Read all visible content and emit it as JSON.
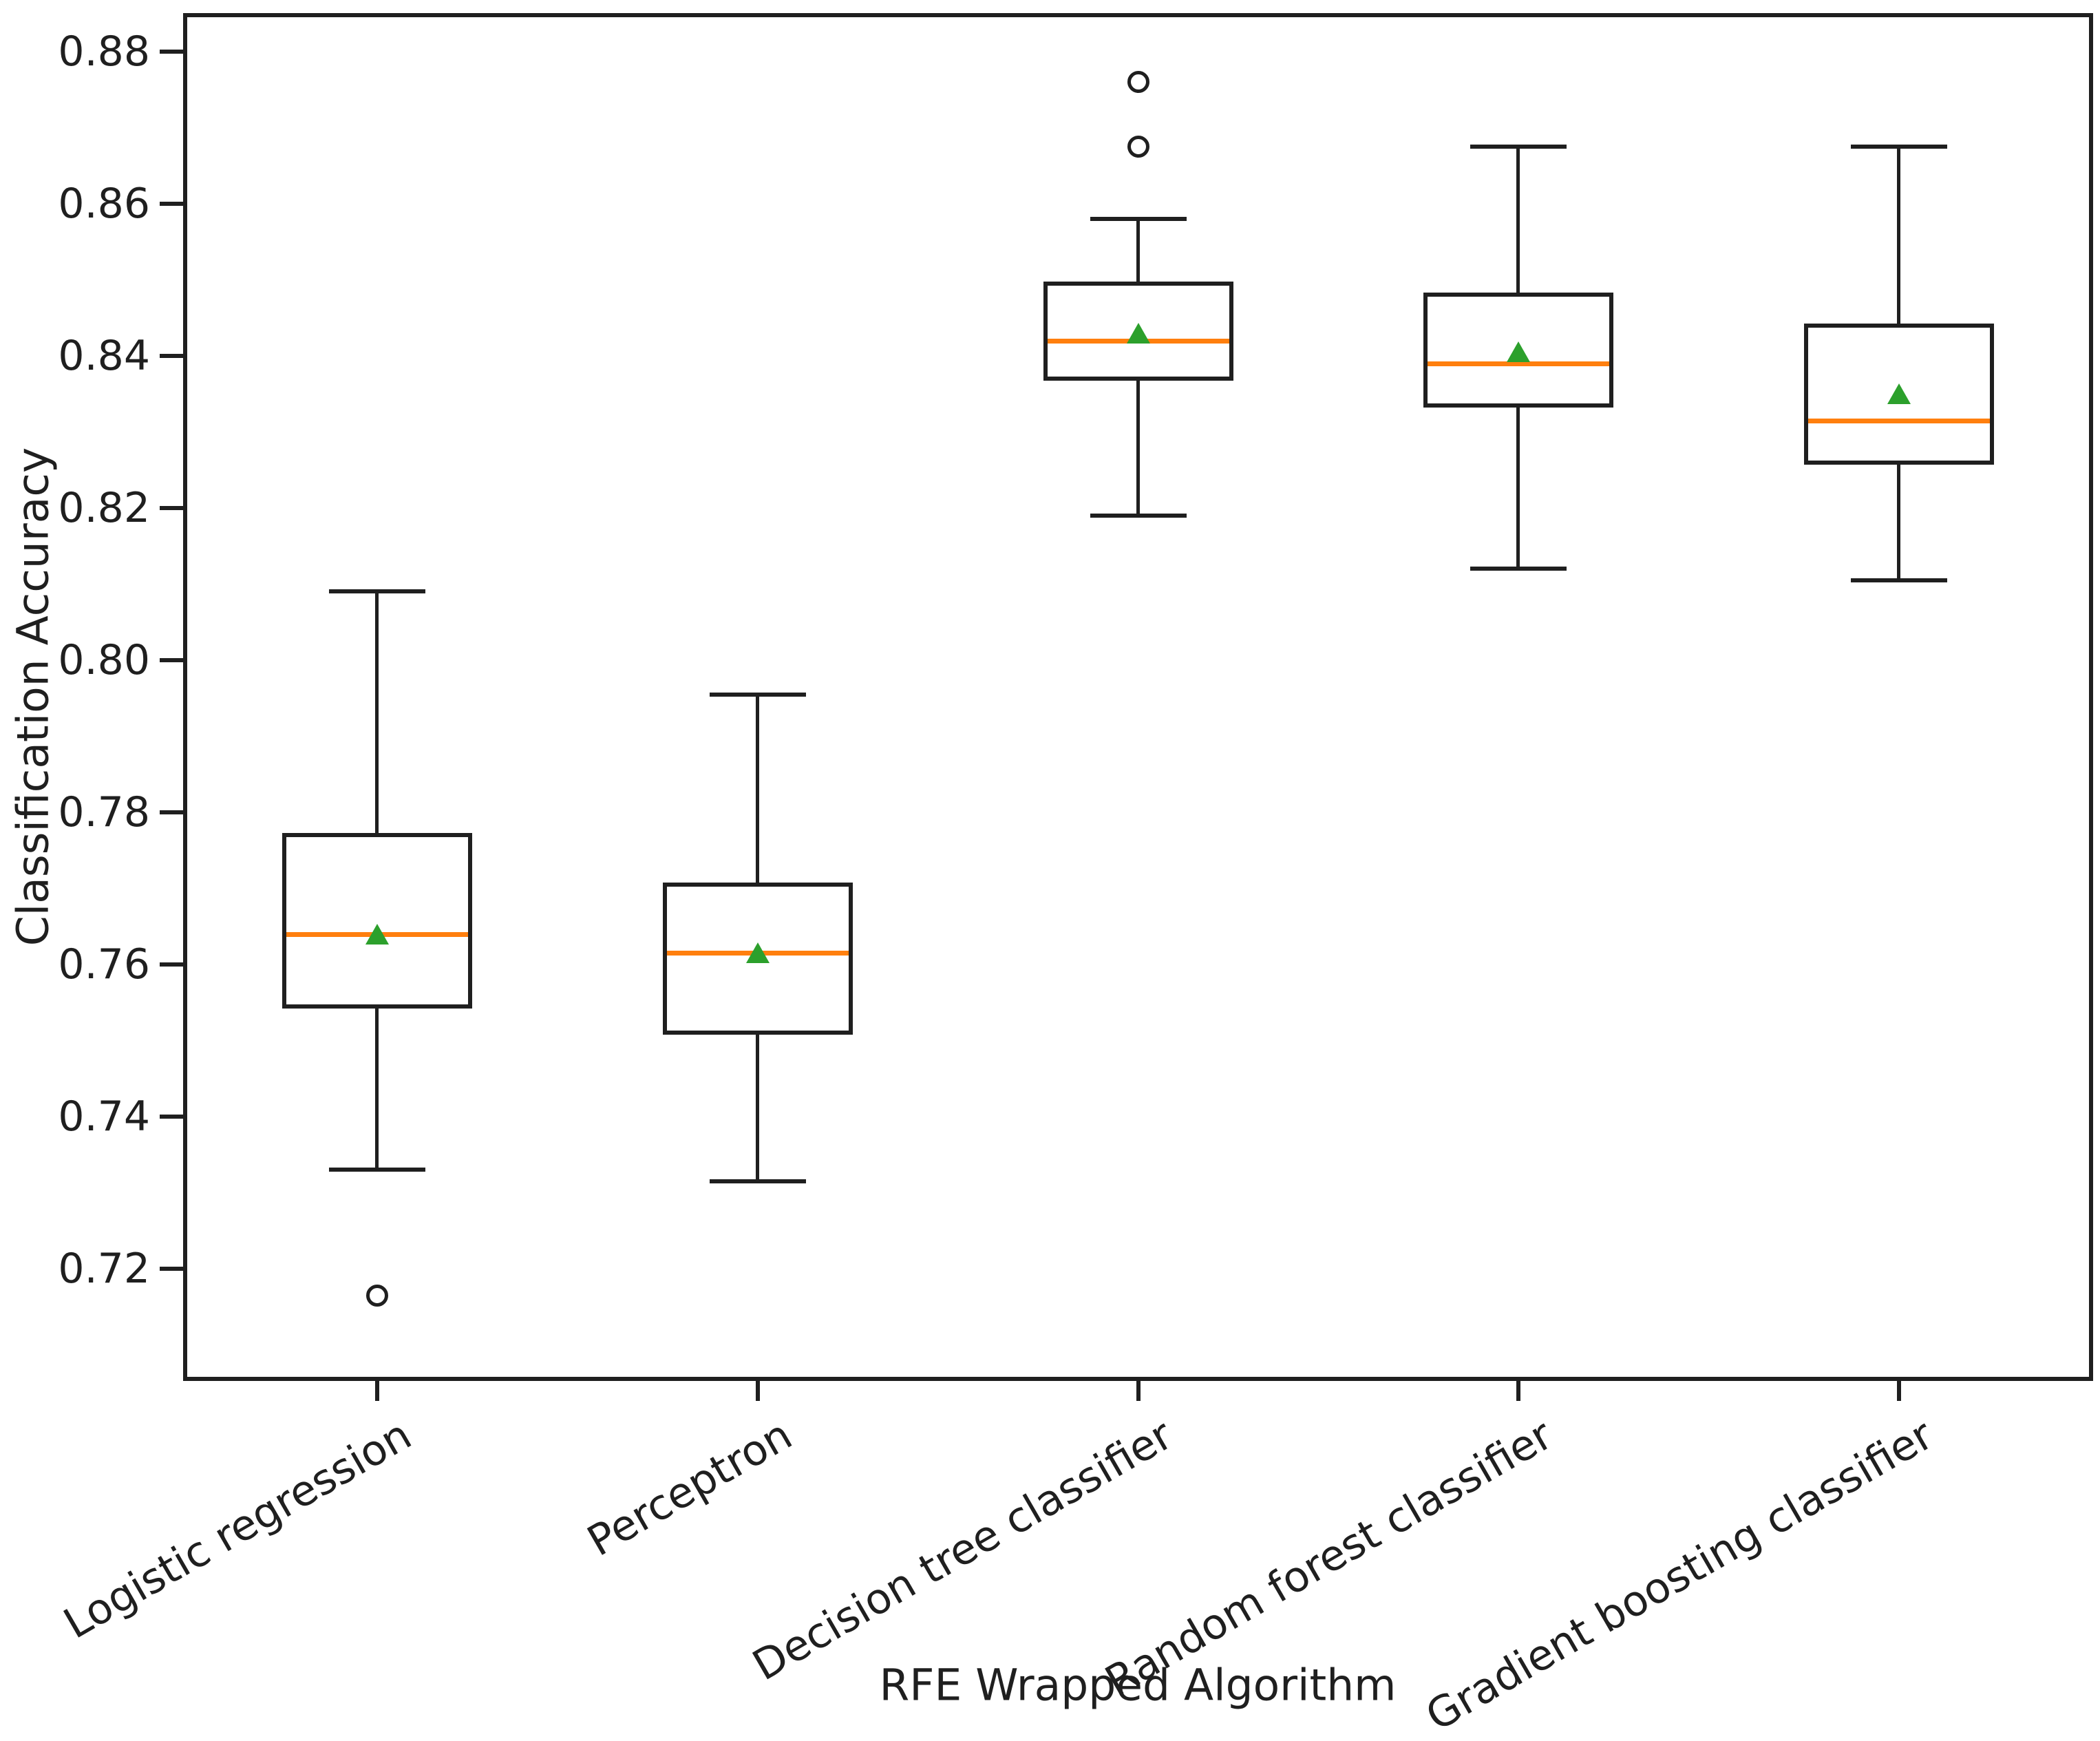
{
  "figure": {
    "background": "#ffffff"
  },
  "chart_data": {
    "type": "box",
    "title": "",
    "xlabel": "RFE Wrapped Algorithm",
    "ylabel": "Classification Accuracy",
    "categories": [
      "Logistic regression",
      "Perceptron",
      "Decision tree classifier",
      "Random forest classifier",
      "Gradient boosting classifier"
    ],
    "ytick_labels": [
      "0.72",
      "0.74",
      "0.76",
      "0.78",
      "0.80",
      "0.82",
      "0.84",
      "0.86",
      "0.88"
    ],
    "ylim": [
      0.7058,
      0.8845
    ],
    "grid": false,
    "legend": "none",
    "series": [
      {
        "name": "Logistic regression",
        "whisker_low": 0.733,
        "q1": 0.7545,
        "median": 0.764,
        "mean": 0.764,
        "q3": 0.777,
        "whisker_high": 0.809,
        "outliers": [
          0.7165
        ]
      },
      {
        "name": "Perceptron",
        "whisker_low": 0.7315,
        "q1": 0.751,
        "median": 0.7615,
        "mean": 0.7615,
        "q3": 0.7705,
        "whisker_high": 0.7955,
        "outliers": []
      },
      {
        "name": "Decision tree classifier",
        "whisker_low": 0.819,
        "q1": 0.837,
        "median": 0.842,
        "mean": 0.843,
        "q3": 0.8495,
        "whisker_high": 0.858,
        "outliers": [
          0.8675,
          0.876
        ]
      },
      {
        "name": "Random forest classifier",
        "whisker_low": 0.812,
        "q1": 0.8335,
        "median": 0.839,
        "mean": 0.8405,
        "q3": 0.848,
        "whisker_high": 0.8675,
        "outliers": []
      },
      {
        "name": "Gradient boosting classifier",
        "whisker_low": 0.8105,
        "q1": 0.826,
        "median": 0.8315,
        "mean": 0.835,
        "q3": 0.844,
        "whisker_high": 0.8675,
        "outliers": []
      }
    ],
    "colors": {
      "box_line": "#1f1f1f",
      "median": "#ff7f0e",
      "mean_marker": "#2ca02c"
    }
  }
}
